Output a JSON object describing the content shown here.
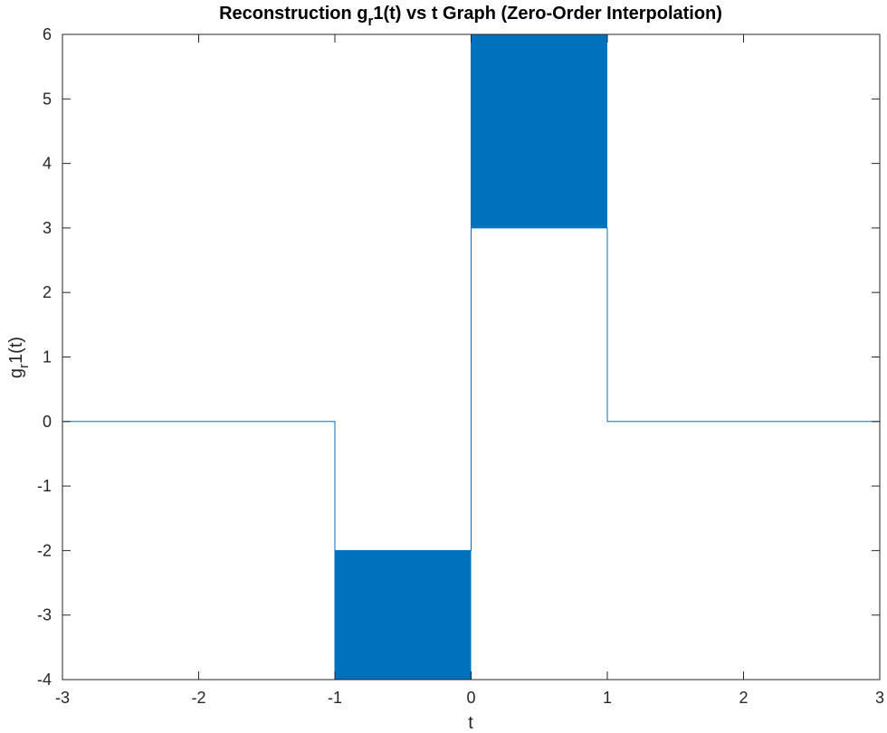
{
  "chart_data": {
    "type": "line",
    "title_main": "Reconstruction g",
    "title_sub": "r",
    "title_rest": "1(t) vs t Graph (Zero-Order Interpolation)",
    "xlabel": "t",
    "ylabel_main": "g",
    "ylabel_sub": "r",
    "ylabel_rest": "1(t)",
    "xlim": [
      -3,
      3
    ],
    "ylim": [
      -4,
      6
    ],
    "xticks": [
      -3,
      -2,
      -1,
      0,
      1,
      2,
      3
    ],
    "yticks": [
      -4,
      -3,
      -2,
      -1,
      0,
      1,
      2,
      3,
      4,
      5,
      6
    ],
    "xtick_labels": [
      "-3",
      "-2",
      "-1",
      "0",
      "1",
      "2",
      "3"
    ],
    "ytick_labels": [
      "-4",
      "-3",
      "-2",
      "-1",
      "0",
      "1",
      "2",
      "3",
      "4",
      "5",
      "6"
    ],
    "grid": false,
    "line_color": "#0072BD",
    "series": [
      {
        "segments": [
          {
            "x_start": -3,
            "x_end": -1,
            "level": 0
          },
          {
            "x_start": -1,
            "x_end": 0,
            "envelope": [
              -4,
              -2
            ]
          },
          {
            "x_start": 0,
            "x_end": 1,
            "envelope": [
              3,
              6
            ]
          },
          {
            "x_start": 1,
            "x_end": 3,
            "level": 0
          }
        ]
      }
    ]
  }
}
